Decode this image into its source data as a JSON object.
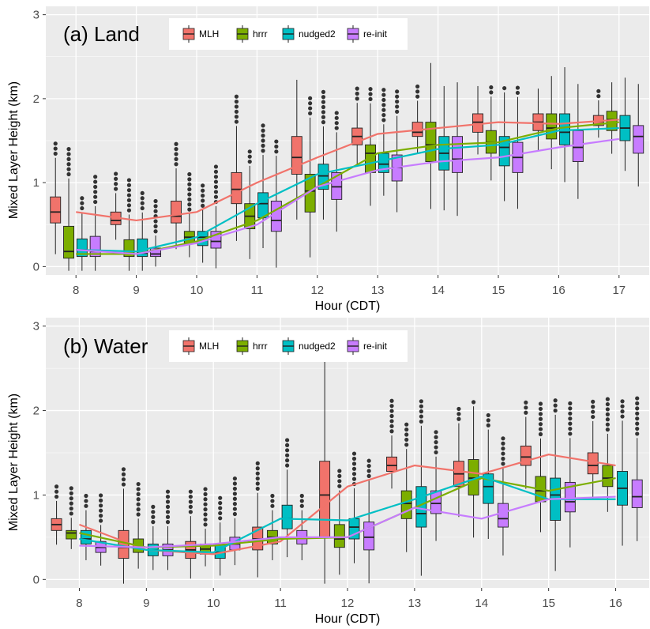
{
  "colors": {
    "MLH": "#f1736b",
    "hrrr": "#7cae00",
    "nudged2": "#00bfc4",
    "re-init": "#c77cff",
    "panel_bg": "#ebebeb",
    "grid": "#ffffff"
  },
  "chart_data": [
    {
      "type": "box",
      "title": "(a) Land",
      "xlabel": "Hour (CDT)",
      "ylabel": "Mixed Layer Height (km)",
      "ylim": [
        -0.1,
        3.1
      ],
      "yticks": [
        0,
        1,
        2,
        3
      ],
      "grid": true,
      "legend": "top",
      "categories": [
        "8",
        "9",
        "10",
        "11",
        "12",
        "13",
        "14",
        "15",
        "16",
        "17"
      ],
      "series": [
        {
          "name": "MLH",
          "key": "MLH",
          "box": [
            [
              0.52,
              0.65,
              0.83
            ],
            [
              0.5,
              0.55,
              0.65
            ],
            [
              0.52,
              0.6,
              0.78
            ],
            [
              0.75,
              0.92,
              1.12
            ],
            [
              1.1,
              1.3,
              1.55
            ],
            [
              1.45,
              1.55,
              1.65
            ],
            [
              1.55,
              1.6,
              1.72
            ],
            [
              1.6,
              1.72,
              1.82
            ],
            [
              1.62,
              1.72,
              1.82
            ],
            [
              1.68,
              1.73,
              1.8
            ]
          ],
          "line": [
            0.65,
            0.55,
            0.65,
            1.0,
            1.3,
            1.58,
            1.65,
            1.72,
            1.7,
            1.75
          ]
        },
        {
          "name": "hrrr",
          "key": "hrrr",
          "box": [
            [
              0.1,
              0.18,
              0.48
            ],
            [
              0.12,
              0.15,
              0.32
            ],
            [
              0.28,
              0.35,
              0.42
            ],
            [
              0.45,
              0.6,
              0.75
            ],
            [
              0.65,
              0.9,
              1.1
            ],
            [
              1.12,
              1.35,
              1.45
            ],
            [
              1.25,
              1.45,
              1.72
            ],
            [
              1.35,
              1.48,
              1.62
            ],
            [
              1.52,
              1.65,
              1.82
            ],
            [
              1.62,
              1.75,
              1.85
            ]
          ],
          "line": [
            0.15,
            0.15,
            0.3,
            0.55,
            0.95,
            1.35,
            1.45,
            1.48,
            1.65,
            1.72
          ]
        },
        {
          "name": "nudged2",
          "key": "nudged2",
          "box": [
            [
              0.12,
              0.2,
              0.33
            ],
            [
              0.12,
              0.16,
              0.33
            ],
            [
              0.25,
              0.35,
              0.42
            ],
            [
              0.58,
              0.75,
              0.88
            ],
            [
              0.92,
              1.08,
              1.22
            ],
            [
              1.12,
              1.22,
              1.35
            ],
            [
              1.15,
              1.35,
              1.55
            ],
            [
              1.2,
              1.42,
              1.55
            ],
            [
              1.45,
              1.6,
              1.82
            ],
            [
              1.5,
              1.65,
              1.8
            ]
          ],
          "line": [
            0.2,
            0.18,
            0.35,
            0.75,
            1.1,
            1.25,
            1.4,
            1.45,
            1.62,
            1.65
          ]
        },
        {
          "name": "re-init",
          "key": "re-init",
          "box": [
            [
              0.12,
              0.18,
              0.36
            ],
            [
              0.12,
              0.15,
              0.22
            ],
            [
              0.22,
              0.3,
              0.42
            ],
            [
              0.42,
              0.55,
              0.78
            ],
            [
              0.8,
              0.95,
              1.12
            ],
            [
              1.02,
              1.18,
              1.33
            ],
            [
              1.12,
              1.28,
              1.55
            ],
            [
              1.12,
              1.3,
              1.48
            ],
            [
              1.25,
              1.42,
              1.62
            ],
            [
              1.35,
              1.55,
              1.68
            ]
          ],
          "line": [
            0.2,
            0.15,
            0.28,
            0.5,
            0.95,
            1.15,
            1.25,
            1.3,
            1.42,
            1.52
          ]
        }
      ]
    },
    {
      "type": "box",
      "title": "(b) Water",
      "xlabel": "Hour (CDT)",
      "ylabel": "Mixed Layer Height (km)",
      "ylim": [
        -0.1,
        3.1
      ],
      "yticks": [
        0,
        1,
        2,
        3
      ],
      "grid": true,
      "legend": "top",
      "categories": [
        "8",
        "9",
        "10",
        "11",
        "12",
        "13",
        "14",
        "15",
        "16"
      ],
      "series": [
        {
          "name": "MLH",
          "key": "MLH",
          "box": [
            [
              0.58,
              0.65,
              0.72
            ],
            [
              0.25,
              0.38,
              0.58
            ],
            [
              0.25,
              0.35,
              0.45
            ],
            [
              0.35,
              0.48,
              0.62
            ],
            [
              0.5,
              1.0,
              1.4
            ],
            [
              1.28,
              1.35,
              1.45
            ],
            [
              1.1,
              1.25,
              1.4
            ],
            [
              1.35,
              1.45,
              1.58
            ],
            [
              1.25,
              1.35,
              1.5
            ]
          ],
          "line": [
            0.65,
            0.35,
            0.3,
            0.45,
            1.1,
            1.35,
            1.25,
            1.48,
            1.35
          ]
        },
        {
          "name": "hrrr",
          "key": "hrrr",
          "box": [
            [
              0.48,
              0.55,
              0.58
            ],
            [
              0.32,
              0.38,
              0.48
            ],
            [
              0.3,
              0.36,
              0.42
            ],
            [
              0.42,
              0.5,
              0.58
            ],
            [
              0.38,
              0.48,
              0.65
            ],
            [
              0.72,
              0.9,
              1.05
            ],
            [
              1.0,
              1.2,
              1.42
            ],
            [
              0.92,
              1.05,
              1.22
            ],
            [
              1.1,
              1.2,
              1.35
            ]
          ],
          "line": [
            0.55,
            0.38,
            0.4,
            0.48,
            0.5,
            0.85,
            1.2,
            1.05,
            1.2
          ]
        },
        {
          "name": "nudged2",
          "key": "nudged2",
          "box": [
            [
              0.42,
              0.48,
              0.58
            ],
            [
              0.28,
              0.35,
              0.42
            ],
            [
              0.25,
              0.32,
              0.42
            ],
            [
              0.6,
              0.72,
              0.88
            ],
            [
              0.48,
              0.62,
              0.72
            ],
            [
              0.62,
              0.78,
              1.1
            ],
            [
              0.9,
              1.1,
              1.25
            ],
            [
              0.7,
              1.0,
              1.2
            ],
            [
              0.88,
              1.08,
              1.28
            ]
          ],
          "line": [
            0.48,
            0.35,
            0.32,
            0.72,
            0.7,
            0.95,
            1.22,
            0.95,
            0.95
          ]
        },
        {
          "name": "re-init",
          "key": "re-init",
          "box": [
            [
              0.32,
              0.38,
              0.45
            ],
            [
              0.28,
              0.35,
              0.42
            ],
            [
              0.35,
              0.42,
              0.5
            ],
            [
              0.42,
              0.5,
              0.58
            ],
            [
              0.35,
              0.5,
              0.68
            ],
            [
              0.78,
              0.9,
              1.05
            ],
            [
              0.62,
              0.72,
              0.9
            ],
            [
              0.8,
              0.92,
              1.15
            ],
            [
              0.85,
              0.98,
              1.18
            ]
          ],
          "line": [
            0.4,
            0.38,
            0.42,
            0.5,
            0.5,
            0.85,
            0.72,
            0.95,
            0.98
          ]
        }
      ]
    }
  ]
}
